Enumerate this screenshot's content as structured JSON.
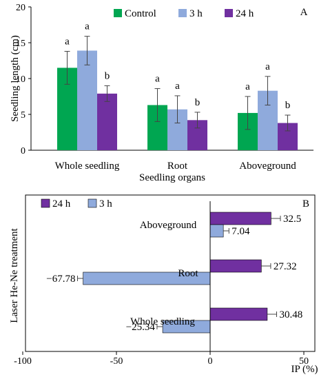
{
  "chart_data": [
    {
      "type": "bar",
      "panel_label": "A",
      "categories": [
        "Whole seedling",
        "Root",
        "Aboveground"
      ],
      "series": [
        {
          "name": "Control",
          "color": "#00a651",
          "values": [
            11.5,
            6.3,
            5.2
          ],
          "errors": [
            2.3,
            2.3,
            2.3
          ],
          "letters": [
            "a",
            "a",
            "a"
          ]
        },
        {
          "name": "3 h",
          "color": "#8faadc",
          "values": [
            13.9,
            5.7,
            8.3
          ],
          "errors": [
            2.0,
            1.9,
            2.0
          ],
          "letters": [
            "a",
            "a",
            "a"
          ]
        },
        {
          "name": "24 h",
          "color": "#7030a0",
          "values": [
            7.9,
            4.2,
            3.8
          ],
          "errors": [
            1.1,
            1.1,
            1.1
          ],
          "letters": [
            "b",
            "b",
            "b"
          ]
        }
      ],
      "xlabel": "Seedling organs",
      "ylabel": "Seedling length (cm)",
      "ylim": [
        0,
        20
      ],
      "yticks": [
        0,
        5,
        10,
        15,
        20
      ],
      "legend": "top",
      "grid": false
    },
    {
      "type": "bar",
      "orientation": "horizontal",
      "panel_label": "B",
      "categories": [
        "Aboveground",
        "Root",
        "Whole seedling"
      ],
      "series": [
        {
          "name": "24 h",
          "color": "#7030a0",
          "values": [
            32.5,
            27.32,
            30.48
          ],
          "errors": [
            5.0,
            5.0,
            5.0
          ],
          "labels": [
            "32.5",
            "27.32",
            "30.48"
          ]
        },
        {
          "name": "3 h",
          "color": "#8faadc",
          "values": [
            7.04,
            -67.78,
            -25.34
          ],
          "errors": [
            3.0,
            3.0,
            3.0
          ],
          "labels": [
            "7.04",
            "−67.78",
            "−25.34"
          ]
        }
      ],
      "xlabel": "IP (%)",
      "ylabel": "Laser He-Ne treatment",
      "xlim": [
        -100,
        50
      ],
      "xticks": [
        "-100",
        "-50",
        "0",
        "50"
      ],
      "legend": "top-left",
      "grid": false
    }
  ]
}
